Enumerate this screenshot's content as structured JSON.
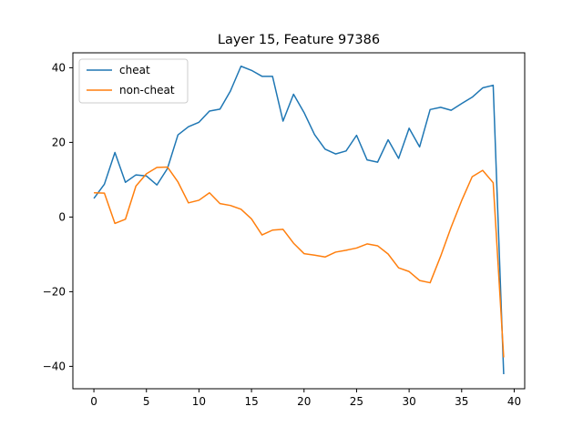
{
  "chart_data": {
    "type": "line",
    "title": "Layer 15, Feature 97386",
    "xlabel": "",
    "ylabel": "",
    "xlim": [
      -2,
      41
    ],
    "ylim": [
      -46,
      44
    ],
    "xticks": [
      0,
      5,
      10,
      15,
      20,
      25,
      30,
      35,
      40
    ],
    "yticks": [
      -40,
      -20,
      0,
      20,
      40
    ],
    "grid": false,
    "legend_position": "top-left",
    "x": [
      0,
      1,
      2,
      3,
      4,
      5,
      6,
      7,
      8,
      9,
      10,
      11,
      12,
      13,
      14,
      15,
      16,
      17,
      18,
      19,
      20,
      21,
      22,
      23,
      24,
      25,
      26,
      27,
      28,
      29,
      30,
      31,
      32,
      33,
      34,
      35,
      36,
      37,
      38,
      39
    ],
    "series": [
      {
        "name": "cheat",
        "color": "#1f77b4",
        "values": [
          5.0,
          8.8,
          17.3,
          9.3,
          11.3,
          11.0,
          8.6,
          13.0,
          22.0,
          24.2,
          25.4,
          28.4,
          28.9,
          33.8,
          40.4,
          39.3,
          37.7,
          37.7,
          25.7,
          32.9,
          28.0,
          22.1,
          18.2,
          16.9,
          17.7,
          21.9,
          15.3,
          14.7,
          20.7,
          15.7,
          23.8,
          18.8,
          28.8,
          29.4,
          28.6,
          30.4,
          32.1,
          34.6,
          35.3,
          -42.1
        ]
      },
      {
        "name": "non-cheat",
        "color": "#ff7f0e",
        "values": [
          6.5,
          6.4,
          -1.7,
          -0.6,
          8.3,
          11.6,
          13.3,
          13.4,
          9.4,
          3.8,
          4.5,
          6.5,
          3.6,
          3.1,
          2.1,
          -0.5,
          -4.8,
          -3.5,
          -3.3,
          -7.0,
          -9.8,
          -10.2,
          -10.7,
          -9.4,
          -8.9,
          -8.3,
          -7.2,
          -7.7,
          -9.9,
          -13.6,
          -14.6,
          -17.0,
          -17.6,
          -10.5,
          -2.7,
          4.4,
          10.8,
          12.5,
          9.2,
          -37.6
        ]
      }
    ]
  }
}
